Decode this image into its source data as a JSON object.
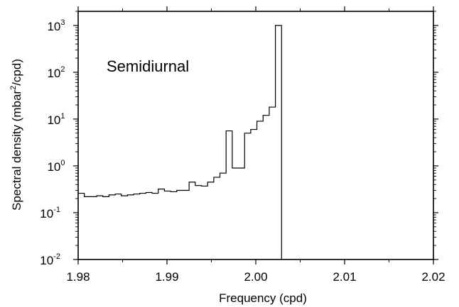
{
  "chart_data": {
    "type": "histogram",
    "xlabel": "Frequency (cpd)",
    "ylabel_prefix": "Spectral density (mbar",
    "ylabel_sup": "2",
    "ylabel_suffix": "/cpd)",
    "annotation": "Semidiurnal",
    "x_scale": "linear",
    "y_scale": "log",
    "xlim": [
      1.98,
      2.02
    ],
    "ylim": [
      0.01,
      2000
    ],
    "x_ticks": [
      {
        "value": 1.98,
        "label": "1.98"
      },
      {
        "value": 1.99,
        "label": "1.99"
      },
      {
        "value": 2.0,
        "label": "2.00"
      },
      {
        "value": 2.01,
        "label": "2.01"
      },
      {
        "value": 2.02,
        "label": "2.02"
      }
    ],
    "y_ticks": [
      {
        "value": 0.01,
        "base": "10",
        "exp": "-2"
      },
      {
        "value": 0.1,
        "base": "10",
        "exp": "-1"
      },
      {
        "value": 1,
        "base": "10",
        "exp": "0"
      },
      {
        "value": 10,
        "base": "10",
        "exp": "1"
      },
      {
        "value": 100,
        "base": "10",
        "exp": "2"
      },
      {
        "value": 1000,
        "base": "10",
        "exp": "3"
      }
    ],
    "bin_width": 0.000694,
    "bin_start": 1.98,
    "values": [
      0.26,
      0.22,
      0.22,
      0.23,
      0.22,
      0.24,
      0.25,
      0.23,
      0.24,
      0.25,
      0.26,
      0.27,
      0.26,
      0.32,
      0.29,
      0.28,
      0.3,
      0.3,
      0.45,
      0.38,
      0.37,
      0.45,
      0.57,
      0.7,
      5.6,
      0.9,
      0.9,
      5.0,
      6.0,
      9.0,
      12.0,
      18.0,
      1000.0
    ],
    "drop_to": 0.01,
    "grid": false
  }
}
